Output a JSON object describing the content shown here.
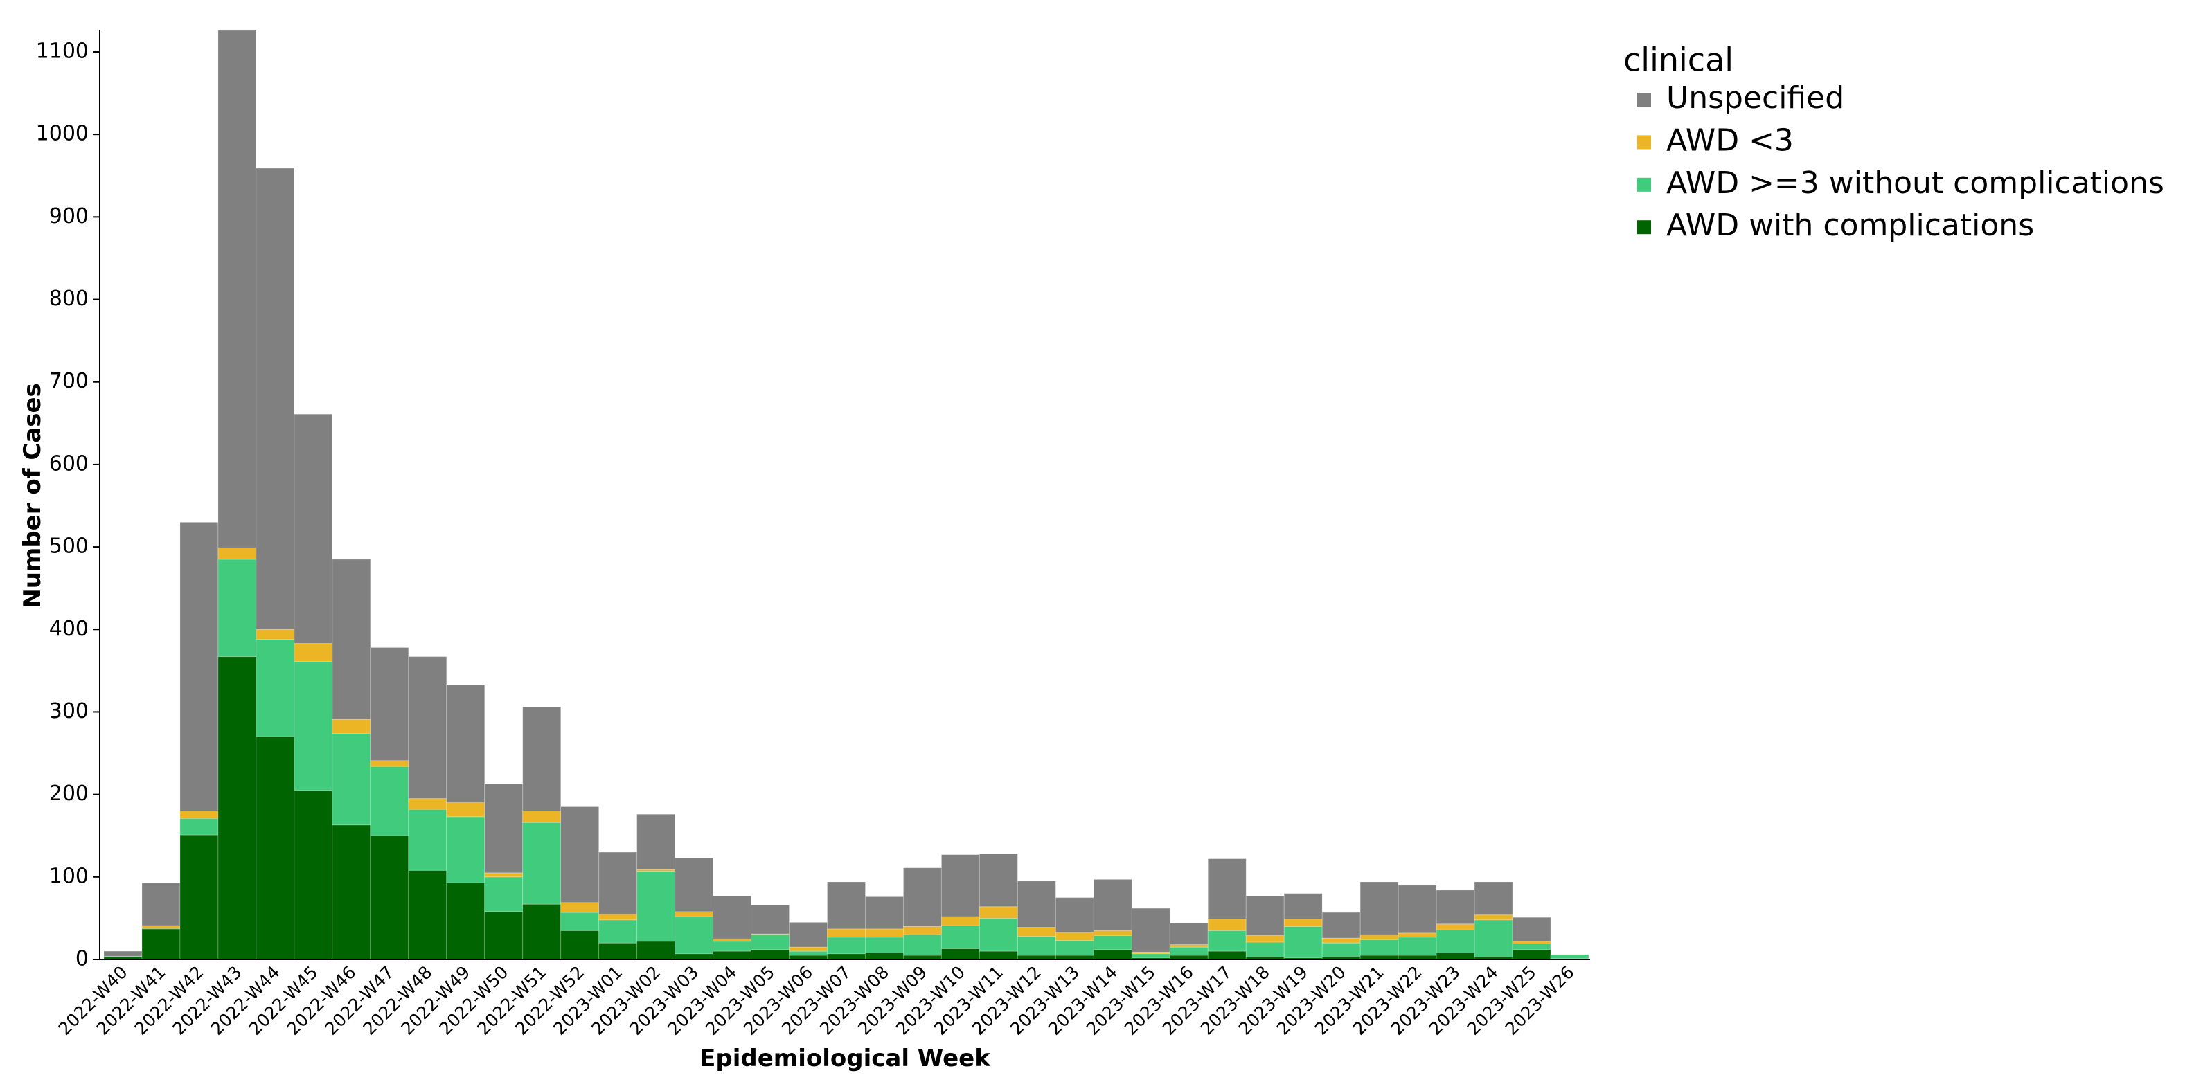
{
  "chart_data": {
    "type": "stacked_bar",
    "x_label": "Epidemiological Week",
    "y_label": "Number of Cases",
    "legend_title": "clinical",
    "legend_position": "right",
    "categories": [
      "2022-W40",
      "2022-W41",
      "2022-W42",
      "2022-W43",
      "2022-W44",
      "2022-W45",
      "2022-W46",
      "2022-W47",
      "2022-W48",
      "2022-W49",
      "2022-W50",
      "2022-W51",
      "2022-W52",
      "2023-W01",
      "2023-W02",
      "2023-W03",
      "2023-W04",
      "2023-W05",
      "2023-W06",
      "2023-W07",
      "2023-W08",
      "2023-W09",
      "2023-W10",
      "2023-W11",
      "2023-W12",
      "2023-W13",
      "2023-W14",
      "2023-W15",
      "2023-W16",
      "2023-W17",
      "2023-W18",
      "2023-W19",
      "2023-W20",
      "2023-W21",
      "2023-W22",
      "2023-W23",
      "2023-W24",
      "2023-W25",
      "2023-W26"
    ],
    "series": [
      {
        "name": "Unspecified",
        "color": "#808080",
        "values": [
          6,
          52,
          350,
          627,
          559,
          278,
          194,
          137,
          172,
          143,
          108,
          126,
          116,
          75,
          67,
          65,
          52,
          35,
          30,
          57,
          39,
          71,
          75,
          64,
          56,
          42,
          62,
          53,
          26,
          73,
          48,
          31,
          31,
          64,
          58,
          41,
          40,
          29,
          0
        ]
      },
      {
        "name": "AWD <3",
        "color": "#ebb526",
        "values": [
          0,
          3,
          9,
          14,
          12,
          22,
          17,
          7,
          13,
          17,
          5,
          14,
          12,
          7,
          2,
          6,
          3,
          1,
          5,
          10,
          10,
          10,
          11,
          14,
          11,
          10,
          6,
          2,
          3,
          14,
          8,
          9,
          6,
          6,
          5,
          7,
          6,
          3,
          0
        ]
      },
      {
        "name": "AWD >=3 without complications",
        "color": "#40cc7c",
        "values": [
          1,
          1,
          20,
          118,
          118,
          156,
          111,
          84,
          74,
          80,
          42,
          99,
          22,
          28,
          85,
          45,
          12,
          18,
          5,
          20,
          19,
          25,
          28,
          40,
          23,
          18,
          17,
          5,
          10,
          25,
          18,
          38,
          17,
          19,
          22,
          28,
          45,
          7,
          5
        ]
      },
      {
        "name": "AWD with complications",
        "color": "#006400",
        "values": [
          3,
          37,
          151,
          367,
          270,
          205,
          163,
          150,
          108,
          93,
          58,
          67,
          35,
          20,
          22,
          7,
          10,
          12,
          5,
          7,
          8,
          5,
          13,
          10,
          5,
          5,
          12,
          2,
          5,
          10,
          3,
          2,
          3,
          5,
          5,
          8,
          3,
          12,
          1
        ]
      }
    ],
    "ylim": [
      0,
      1126
    ],
    "yticks": [
      0,
      100,
      200,
      300,
      400,
      500,
      600,
      700,
      800,
      900,
      1000,
      1100
    ]
  }
}
